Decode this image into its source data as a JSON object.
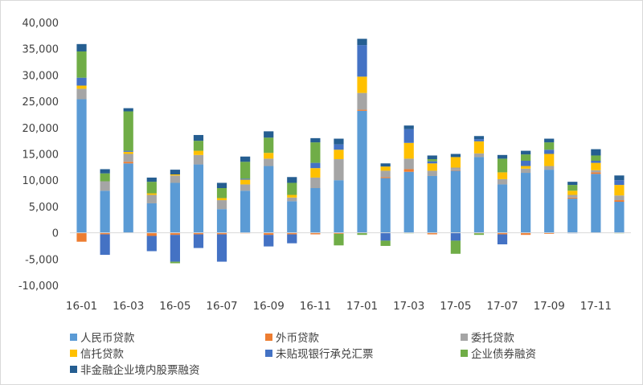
{
  "chart_data": {
    "type": "bar",
    "stacked": true,
    "categories": [
      "16-01",
      "16-02",
      "16-03",
      "16-04",
      "16-05",
      "16-06",
      "16-07",
      "16-08",
      "16-09",
      "16-10",
      "16-11",
      "16-12",
      "17-01",
      "17-02",
      "17-03",
      "17-04",
      "17-05",
      "17-06",
      "17-07",
      "17-08",
      "17-09",
      "17-10",
      "17-11",
      "17-12"
    ],
    "x_tick_labels": [
      "16-01",
      "",
      "16-03",
      "",
      "16-05",
      "",
      "16-07",
      "",
      "16-09",
      "",
      "16-11",
      "",
      "17-01",
      "",
      "17-03",
      "",
      "17-05",
      "",
      "17-07",
      "",
      "17-09",
      "",
      "17-11",
      ""
    ],
    "ylim": [
      -10000,
      40000
    ],
    "yticks": [
      -10000,
      -5000,
      0,
      5000,
      10000,
      15000,
      20000,
      25000,
      30000,
      35000,
      40000
    ],
    "ytick_labels": [
      "-10,000",
      "-5,000",
      "0",
      "5,000",
      "10,000",
      "15,000",
      "20,000",
      "25,000",
      "30,000",
      "35,000",
      "40,000"
    ],
    "grid": false,
    "legend_position": "bottom",
    "series": [
      {
        "name": "人民币贷款",
        "color": "#5b9bd5",
        "values": [
          25400,
          8000,
          13200,
          5600,
          9500,
          13000,
          4500,
          8000,
          12700,
          6000,
          8500,
          10000,
          23200,
          10400,
          11600,
          10800,
          11800,
          14400,
          9200,
          11400,
          12000,
          6500,
          11200,
          5900
        ]
      },
      {
        "name": "外币贷款",
        "color": "#ed7d31",
        "values": [
          -1700,
          -300,
          300,
          -600,
          -400,
          -300,
          -300,
          -100,
          -400,
          -300,
          -300,
          -200,
          200,
          200,
          500,
          -300,
          100,
          -100,
          -300,
          -400,
          -200,
          200,
          300,
          300
        ]
      },
      {
        "name": "委托贷款",
        "color": "#a5a5a5",
        "values": [
          2000,
          1800,
          1500,
          1600,
          1400,
          1800,
          1700,
          1200,
          1400,
          700,
          2000,
          4000,
          3200,
          1200,
          2000,
          1000,
          500,
          700,
          1000,
          800,
          700,
          500,
          400,
          900
        ]
      },
      {
        "name": "信托贷款",
        "color": "#ffc000",
        "values": [
          600,
          0,
          400,
          300,
          200,
          800,
          400,
          900,
          1100,
          500,
          1800,
          1800,
          3100,
          800,
          3000,
          1400,
          2000,
          2300,
          1300,
          500,
          2300,
          800,
          1400,
          2000
        ]
      },
      {
        "name": "未贴现银行承兑汇票",
        "color": "#4472c4",
        "values": [
          1500,
          -3900,
          200,
          -2900,
          -5100,
          -2600,
          -5200,
          200,
          -2200,
          -1700,
          1000,
          1000,
          6000,
          -1500,
          2600,
          400,
          -1500,
          400,
          -1900,
          1000,
          800,
          -100,
          400,
          900
        ]
      },
      {
        "name": "企业债券融资",
        "color": "#70ad47",
        "values": [
          5000,
          1500,
          7500,
          2200,
          -300,
          1900,
          1900,
          3200,
          2900,
          2300,
          3900,
          -2200,
          -400,
          -1000,
          -100,
          400,
          -2500,
          -300,
          2600,
          1200,
          1400,
          1100,
          1000,
          -100
        ]
      },
      {
        "name": "非金融企业境内股票融资",
        "color": "#255e91",
        "values": [
          1400,
          800,
          600,
          800,
          900,
          1100,
          1000,
          1000,
          1200,
          1100,
          800,
          1100,
          1200,
          600,
          700,
          700,
          600,
          600,
          700,
          700,
          700,
          600,
          1200,
          900
        ]
      }
    ]
  }
}
